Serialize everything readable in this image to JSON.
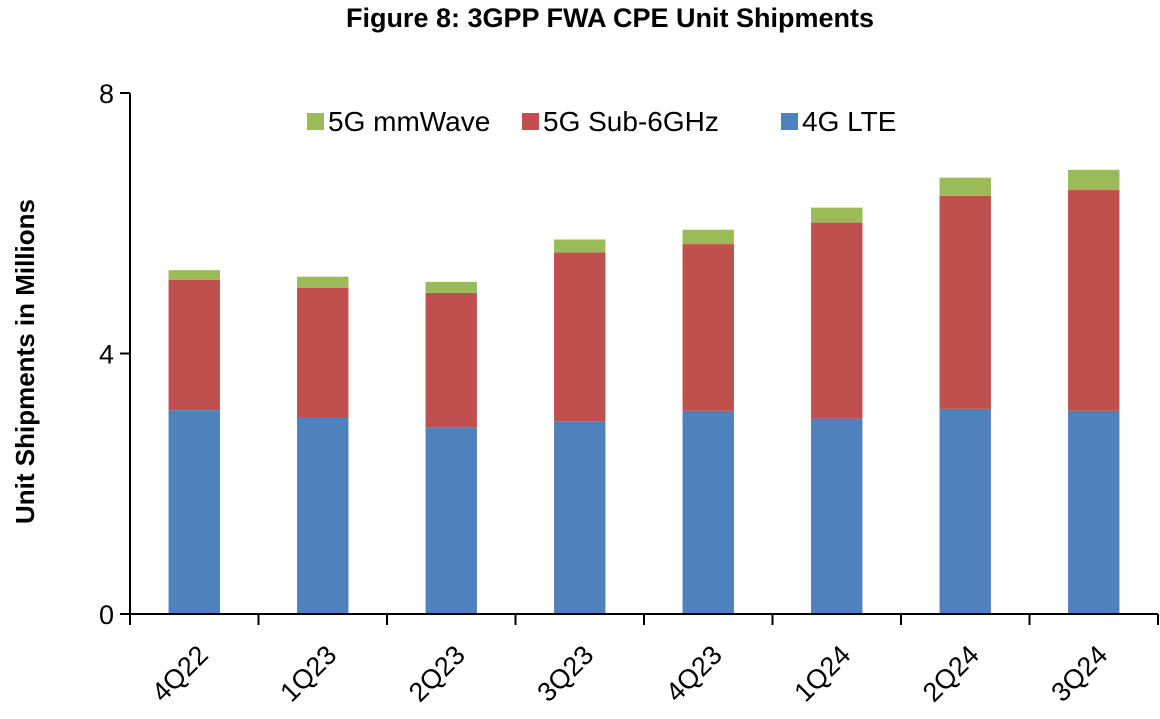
{
  "chart_data": {
    "type": "bar",
    "stacked": true,
    "title": "Figure 8: 3GPP FWA CPE Unit Shipments",
    "xlabel": "",
    "ylabel": "Unit Shipments in Millions",
    "ylim": [
      0,
      8
    ],
    "yticks": [
      0,
      4,
      8
    ],
    "grid": false,
    "legend_position": "top-center",
    "categories": [
      "4Q22",
      "1Q23",
      "2Q23",
      "3Q23",
      "4Q23",
      "1Q24",
      "2Q24",
      "3Q24"
    ],
    "series": [
      {
        "name": "4G LTE",
        "color": "#4F81BD",
        "values": [
          3.13,
          3.01,
          2.86,
          2.96,
          3.12,
          3.0,
          3.15,
          3.12
        ]
      },
      {
        "name": "5G Sub-6GHz",
        "color": "#C0504D",
        "values": [
          2.0,
          2.0,
          2.07,
          2.59,
          2.56,
          3.01,
          3.27,
          3.39
        ]
      },
      {
        "name": "5G mmWave",
        "color": "#9BBB59",
        "values": [
          0.15,
          0.17,
          0.17,
          0.2,
          0.22,
          0.23,
          0.28,
          0.31
        ]
      }
    ],
    "legend_order": [
      "5G mmWave",
      "5G Sub-6GHz",
      "4G LTE"
    ]
  }
}
